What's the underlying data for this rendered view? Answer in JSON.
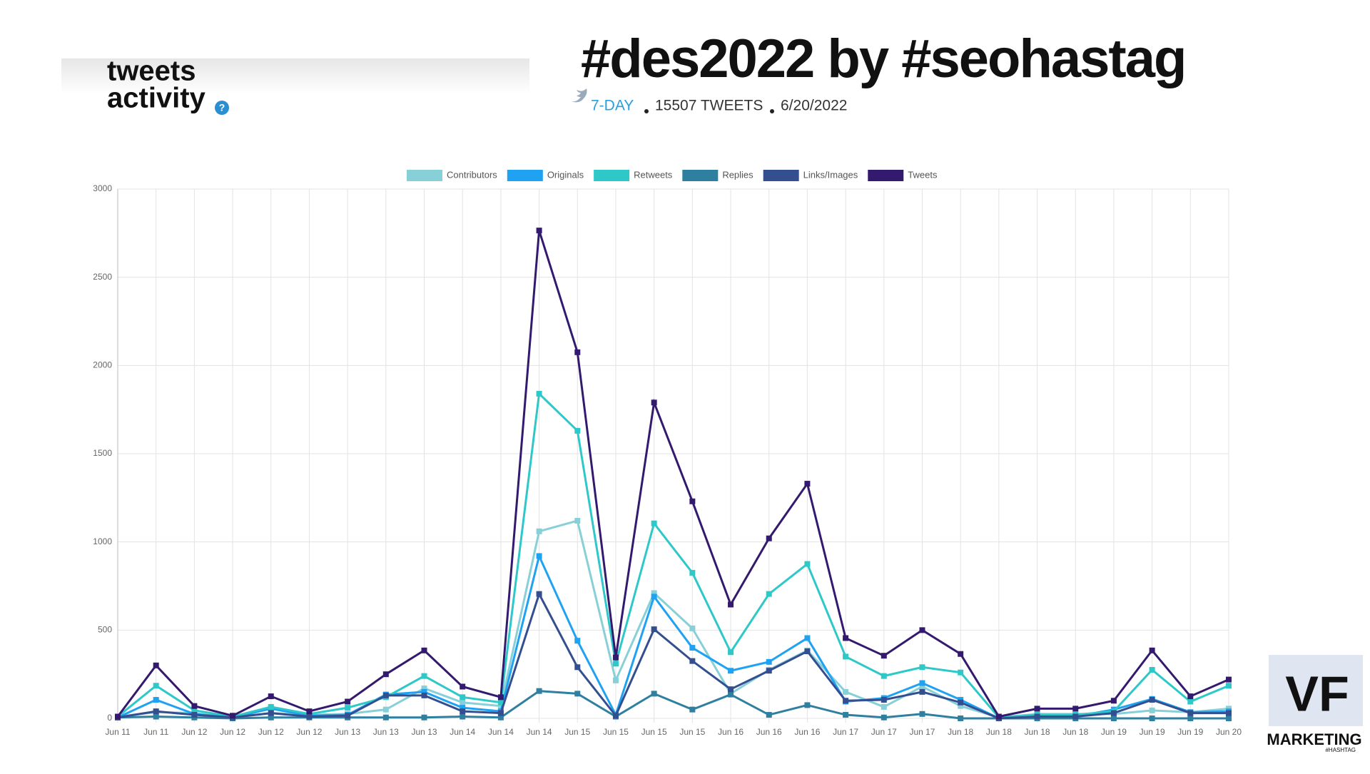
{
  "header": {
    "section_title_lines": [
      "tweets",
      "activity"
    ],
    "help_icon": "?",
    "hashtag_title": "#des2022 by #seohastag",
    "meta": [
      "7-DAY",
      "15507 TWEETS",
      "6/20/2022"
    ]
  },
  "logo": {
    "mark": "VF",
    "text": "MARKETING",
    "subtext": "#HASHTAG"
  },
  "chart_data": {
    "type": "line",
    "categories": [
      "Jun 11",
      "Jun 11",
      "Jun 12",
      "Jun 12",
      "Jun 12",
      "Jun 12",
      "Jun 13",
      "Jun 13",
      "Jun 13",
      "Jun 14",
      "Jun 14",
      "Jun 14",
      "Jun 15",
      "Jun 15",
      "Jun 15",
      "Jun 15",
      "Jun 16",
      "Jun 16",
      "Jun 16",
      "Jun 17",
      "Jun 17",
      "Jun 17",
      "Jun 18",
      "Jun 18",
      "Jun 18",
      "Jun 18",
      "Jun 19",
      "Jun 19",
      "Jun 19",
      "Jun 20"
    ],
    "series": [
      {
        "name": "Contributors",
        "color": "#88d0d8",
        "values": [
          10,
          35,
          30,
          5,
          30,
          20,
          25,
          50,
          170,
          90,
          70,
          1060,
          1120,
          215,
          710,
          510,
          140,
          275,
          385,
          150,
          65,
          180,
          70,
          5,
          25,
          25,
          25,
          45,
          35,
          55
        ]
      },
      {
        "name": "Originals",
        "color": "#1fa2f2",
        "values": [
          5,
          105,
          25,
          5,
          55,
          15,
          20,
          135,
          150,
          60,
          40,
          920,
          440,
          20,
          690,
          400,
          270,
          320,
          455,
          95,
          115,
          200,
          105,
          0,
          10,
          10,
          50,
          110,
          35,
          40
        ]
      },
      {
        "name": "Retweets",
        "color": "#2ec8c8",
        "values": [
          10,
          185,
          45,
          10,
          65,
          25,
          60,
          120,
          240,
          120,
          90,
          1840,
          1630,
          310,
          1105,
          825,
          375,
          705,
          875,
          350,
          240,
          290,
          260,
          5,
          20,
          20,
          40,
          275,
          95,
          185
        ]
      },
      {
        "name": "Replies",
        "color": "#2f7fa0",
        "values": [
          5,
          10,
          5,
          0,
          5,
          5,
          5,
          5,
          5,
          10,
          5,
          155,
          140,
          10,
          140,
          50,
          135,
          20,
          75,
          20,
          5,
          25,
          0,
          0,
          0,
          0,
          0,
          0,
          0,
          0
        ]
      },
      {
        "name": "Links/Images",
        "color": "#344f8f",
        "values": [
          5,
          40,
          20,
          5,
          30,
          10,
          15,
          130,
          130,
          40,
          30,
          705,
          290,
          15,
          505,
          325,
          165,
          270,
          380,
          100,
          105,
          150,
          90,
          0,
          10,
          10,
          30,
          105,
          30,
          30
        ]
      },
      {
        "name": "Tweets",
        "color": "#331a6e",
        "values": [
          10,
          300,
          70,
          15,
          125,
          40,
          95,
          250,
          385,
          180,
          120,
          2765,
          2075,
          345,
          1790,
          1230,
          645,
          1020,
          1330,
          455,
          355,
          500,
          365,
          10,
          55,
          55,
          100,
          385,
          125,
          220
        ]
      }
    ],
    "ylim": [
      0,
      3000
    ],
    "yticks": [
      0,
      500,
      1000,
      1500,
      2000,
      2500,
      3000
    ],
    "grid": true,
    "legend": "top"
  }
}
